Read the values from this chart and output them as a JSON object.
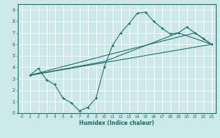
{
  "xlabel": "Humidex (Indice chaleur)",
  "bg_color": "#cce8e8",
  "grid_color": "#ffffff",
  "line_color": "#1a6b6b",
  "xlim": [
    -0.5,
    23.5
  ],
  "ylim": [
    0,
    9.5
  ],
  "xticks": [
    0,
    1,
    2,
    3,
    4,
    5,
    6,
    7,
    8,
    9,
    10,
    11,
    12,
    13,
    14,
    15,
    16,
    17,
    18,
    19,
    20,
    21,
    22,
    23
  ],
  "yticks": [
    0,
    1,
    2,
    3,
    4,
    5,
    6,
    7,
    8,
    9
  ],
  "series1_x": [
    1,
    2,
    3,
    4,
    5,
    6,
    7,
    8,
    9,
    10,
    11,
    12,
    13,
    14,
    15,
    16,
    17,
    18,
    19,
    20,
    21,
    22,
    23
  ],
  "series1_y": [
    3.3,
    3.9,
    2.9,
    2.5,
    1.3,
    0.9,
    0.2,
    0.5,
    1.3,
    4.0,
    5.9,
    7.0,
    7.8,
    8.7,
    8.8,
    8.0,
    7.4,
    6.9,
    7.0,
    7.5,
    7.0,
    6.5,
    6.0
  ],
  "series2_x": [
    1,
    23
  ],
  "series2_y": [
    3.3,
    6.0
  ],
  "series3_x": [
    1,
    10,
    19,
    23
  ],
  "series3_y": [
    3.3,
    4.5,
    7.0,
    6.0
  ],
  "series4_x": [
    1,
    10,
    21,
    23
  ],
  "series4_y": [
    3.3,
    5.0,
    7.0,
    6.0
  ]
}
